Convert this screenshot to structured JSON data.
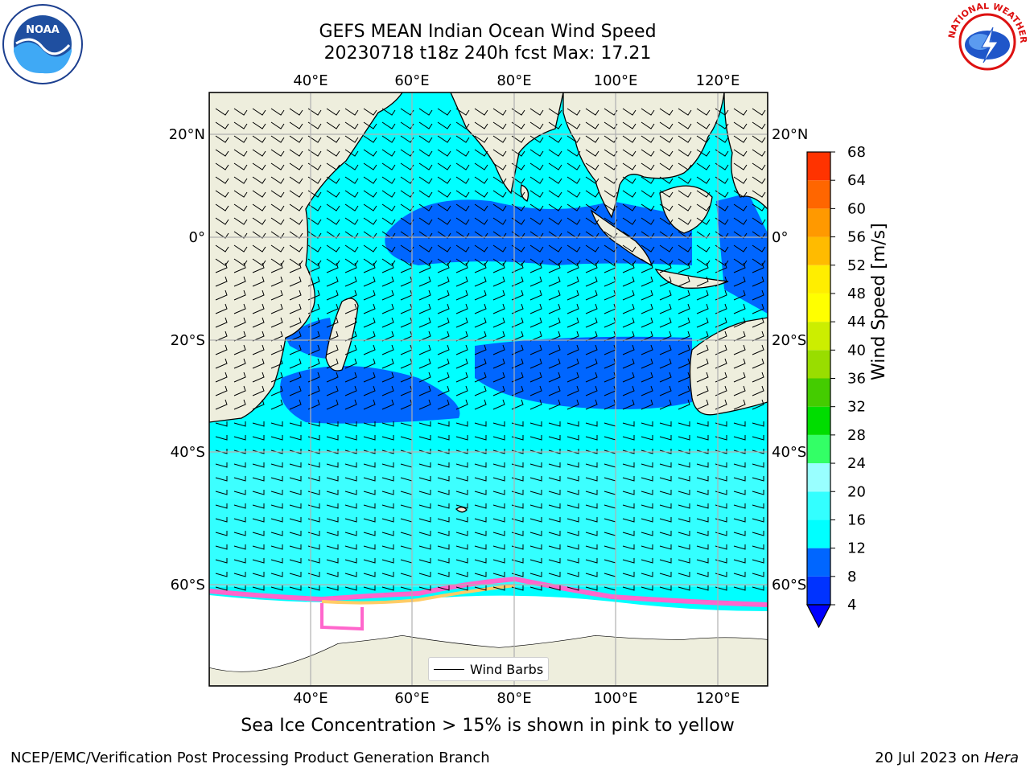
{
  "title": {
    "line1": "GEFS MEAN Indian Ocean Wind Speed",
    "line2": "20230718 t18z 240h fcst   Max: 17.21"
  },
  "logos": {
    "left": {
      "name": "noaa-logo",
      "text": "NOAA"
    },
    "right": {
      "name": "nws-logo",
      "text": "NATIONAL WEATHER SERVICE"
    }
  },
  "map": {
    "lon_ticks": [
      "40°E",
      "60°E",
      "80°E",
      "100°E",
      "120°E"
    ],
    "lat_ticks": [
      "20°N",
      "0°",
      "20°S",
      "40°S",
      "60°S"
    ],
    "lon_values": [
      40,
      60,
      80,
      100,
      120
    ],
    "lat_values": [
      20,
      0,
      -20,
      -40,
      -60
    ],
    "lon_range": [
      20,
      130
    ],
    "lat_range": [
      -78,
      28
    ],
    "land_color": "#eeeedd",
    "grid": true
  },
  "colorbar": {
    "label": "Wind Speed [m/s]",
    "ticks": [
      "4",
      "8",
      "12",
      "16",
      "20",
      "24",
      "28",
      "32",
      "36",
      "40",
      "44",
      "48",
      "52",
      "56",
      "60",
      "64",
      "68"
    ],
    "colors": [
      "#0033ff",
      "#0066ff",
      "#00ffff",
      "#33ffff",
      "#99ffff",
      "#33ff66",
      "#00dd00",
      "#44cc00",
      "#99dd00",
      "#ccee00",
      "#ffff00",
      "#ffee00",
      "#ffbb00",
      "#ff9900",
      "#ff6600",
      "#ff3300",
      "#ff0000"
    ],
    "extend_color": "#0000ff"
  },
  "legend": {
    "label": "Wind Barbs"
  },
  "footer": {
    "note": "Sea Ice Concentration > 15% is shown in pink to yellow",
    "credit": "NCEP/EMC/Verification Post Processing Product Generation Branch",
    "date_prefix": "20 Jul 2023 on ",
    "date_machine": "Hera"
  }
}
